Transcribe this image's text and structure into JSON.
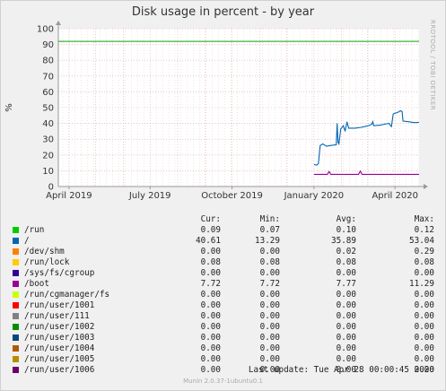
{
  "chart_data": {
    "type": "line",
    "title": "Disk usage in percent - by year",
    "ylabel": "%",
    "side_label": "RRDTOOL / TOBI OETIKER",
    "ylim": [
      0,
      100
    ],
    "yticks": [
      0,
      10,
      20,
      30,
      40,
      50,
      60,
      70,
      80,
      90,
      100
    ],
    "x_tick_labels": [
      "April 2019",
      "July 2019",
      "October 2019",
      "January 2020",
      "April 2020"
    ],
    "threshold": {
      "name": "warning",
      "value": 92,
      "color": "#00aa00"
    },
    "series": [
      {
        "name": "/",
        "color": "#0066b3",
        "points": [
          [
            "2020-01-01",
            14
          ],
          [
            "2020-01-04",
            13.5
          ],
          [
            "2020-01-06",
            14.5
          ],
          [
            "2020-01-08",
            26
          ],
          [
            "2020-01-11",
            27
          ],
          [
            "2020-01-15",
            25.5
          ],
          [
            "2020-01-20",
            26
          ],
          [
            "2020-01-26",
            26.5
          ],
          [
            "2020-01-27",
            40
          ],
          [
            "2020-01-28",
            28
          ],
          [
            "2020-01-29",
            27
          ],
          [
            "2020-01-31",
            36.5
          ],
          [
            "2020-02-03",
            38.5
          ],
          [
            "2020-02-05",
            35
          ],
          [
            "2020-02-07",
            41
          ],
          [
            "2020-02-09",
            37
          ],
          [
            "2020-02-16",
            37
          ],
          [
            "2020-02-23",
            37.5
          ],
          [
            "2020-03-02",
            38.5
          ],
          [
            "2020-03-06",
            39.5
          ],
          [
            "2020-03-07",
            41
          ],
          [
            "2020-03-08",
            38.5
          ],
          [
            "2020-03-16",
            39
          ],
          [
            "2020-03-20",
            39.5
          ],
          [
            "2020-03-25",
            40
          ],
          [
            "2020-03-28",
            38
          ],
          [
            "2020-03-30",
            46
          ],
          [
            "2020-04-04",
            47
          ],
          [
            "2020-04-07",
            48
          ],
          [
            "2020-04-09",
            47.5
          ],
          [
            "2020-04-10",
            41.5
          ],
          [
            "2020-04-17",
            41
          ],
          [
            "2020-04-22",
            40.5
          ],
          [
            "2020-04-28",
            40.6
          ]
        ]
      },
      {
        "name": "/boot",
        "color": "#990099",
        "points": [
          [
            "2020-01-01",
            7.7
          ],
          [
            "2020-01-16",
            7.7
          ],
          [
            "2020-01-18",
            9.5
          ],
          [
            "2020-01-20",
            7.7
          ],
          [
            "2020-02-20",
            7.7
          ],
          [
            "2020-02-22",
            9.8
          ],
          [
            "2020-02-24",
            7.7
          ],
          [
            "2020-04-28",
            7.7
          ]
        ]
      }
    ]
  },
  "legend": {
    "headers": {
      "cur": "Cur:",
      "min": "Min:",
      "avg": "Avg:",
      "max": "Max:"
    },
    "rows": [
      {
        "name": "/run",
        "color": "#00cc00",
        "cur": "0.09",
        "min": "0.07",
        "avg": "0.10",
        "max": "0.12"
      },
      {
        "name": "/",
        "color": "#0066b3",
        "cur": "40.61",
        "min": "13.29",
        "avg": "35.89",
        "max": "53.04"
      },
      {
        "name": "/dev/shm",
        "color": "#ff8000",
        "cur": "0.00",
        "min": "0.00",
        "avg": "0.02",
        "max": "0.29"
      },
      {
        "name": "/run/lock",
        "color": "#ffcc00",
        "cur": "0.08",
        "min": "0.08",
        "avg": "0.08",
        "max": "0.08"
      },
      {
        "name": "/sys/fs/cgroup",
        "color": "#330099",
        "cur": "0.00",
        "min": "0.00",
        "avg": "0.00",
        "max": "0.00"
      },
      {
        "name": "/boot",
        "color": "#990099",
        "cur": "7.72",
        "min": "7.72",
        "avg": "7.77",
        "max": "11.29"
      },
      {
        "name": "/run/cgmanager/fs",
        "color": "#ccff00",
        "cur": "0.00",
        "min": "0.00",
        "avg": "0.00",
        "max": "0.00"
      },
      {
        "name": "/run/user/1001",
        "color": "#ff0000",
        "cur": "0.00",
        "min": "0.00",
        "avg": "0.00",
        "max": "0.00"
      },
      {
        "name": "/run/user/111",
        "color": "#808080",
        "cur": "0.00",
        "min": "0.00",
        "avg": "0.00",
        "max": "0.00"
      },
      {
        "name": "/run/user/1002",
        "color": "#008f00",
        "cur": "0.00",
        "min": "0.00",
        "avg": "0.00",
        "max": "0.00"
      },
      {
        "name": "/run/user/1003",
        "color": "#00487d",
        "cur": "0.00",
        "min": "0.00",
        "avg": "0.00",
        "max": "0.00"
      },
      {
        "name": "/run/user/1004",
        "color": "#b35a00",
        "cur": "0.00",
        "min": "0.00",
        "avg": "0.00",
        "max": "0.00"
      },
      {
        "name": "/run/user/1005",
        "color": "#b38f00",
        "cur": "0.00",
        "min": "0.00",
        "avg": "0.00",
        "max": "0.00"
      },
      {
        "name": "/run/user/1006",
        "color": "#6b006b",
        "cur": "0.00",
        "min": "0.00",
        "avg": "0.00",
        "max": "0.00"
      }
    ]
  },
  "footer": {
    "last_update": "Last update: Tue Apr 28 00:00:45 2020",
    "generator": "Munin 2.0.37-1ubuntu0.1"
  }
}
